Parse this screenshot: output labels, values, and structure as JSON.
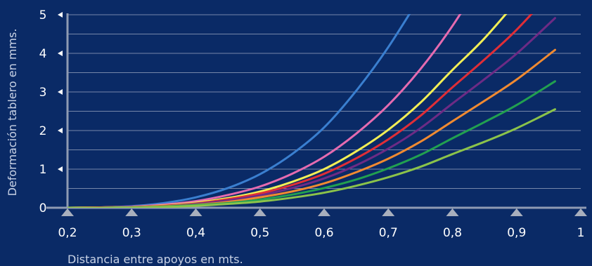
{
  "colors": {
    "background": "#0a2a66",
    "axis": "#8f9bb3",
    "grid": "#9aa6c0",
    "text": "#ffffff",
    "axis_title": "#c9d3e6"
  },
  "chart_data": {
    "type": "line",
    "title": "",
    "xlabel": "Distancia entre apoyos en mts.",
    "ylabel": "Deformación tablero en mms.",
    "xlim": [
      0.2,
      1.0
    ],
    "ylim": [
      0,
      5
    ],
    "x_ticks": [
      0.2,
      0.3,
      0.4,
      0.5,
      0.6,
      0.7,
      0.8,
      0.9,
      1.0
    ],
    "x_tick_labels": [
      "0,2",
      "0,3",
      "0,4",
      "0,5",
      "0,6",
      "0,7",
      "0,8",
      "0,9",
      "1"
    ],
    "y_ticks": [
      0,
      1,
      2,
      3,
      4,
      5
    ],
    "y_tick_labels": [
      "0",
      "1",
      "2",
      "3",
      "4",
      "5"
    ],
    "grid": true,
    "legend": "none",
    "x": [
      0.2,
      0.25,
      0.3,
      0.35,
      0.4,
      0.45,
      0.5,
      0.55,
      0.6,
      0.65,
      0.7,
      0.75,
      0.8,
      0.85,
      0.9,
      0.95,
      1.0
    ],
    "series": [
      {
        "color": "#3a7fd0",
        "values": [
          0.0,
          0.01,
          0.04,
          0.12,
          0.27,
          0.51,
          0.87,
          1.39,
          2.08,
          3.03,
          4.16,
          null,
          null,
          null,
          null,
          null,
          null
        ]
      },
      {
        "color": "#e56bb0",
        "values": [
          0.0,
          0.01,
          0.03,
          0.08,
          0.17,
          0.33,
          0.55,
          0.88,
          1.32,
          1.92,
          2.66,
          3.59,
          4.71,
          null,
          null,
          null,
          null
        ]
      },
      {
        "color": "#f2ee55",
        "values": [
          0.0,
          0.01,
          0.02,
          0.06,
          0.13,
          0.25,
          0.42,
          0.67,
          1.0,
          1.46,
          2.02,
          2.72,
          3.57,
          4.39,
          null,
          null,
          null
        ]
      },
      {
        "color": "#e02e37",
        "values": [
          0.0,
          0.01,
          0.02,
          0.05,
          0.11,
          0.22,
          0.37,
          0.59,
          0.88,
          1.28,
          1.77,
          2.38,
          3.12,
          3.84,
          4.61,
          null,
          null
        ]
      },
      {
        "color": "#6d2b85",
        "values": [
          0.0,
          0.0,
          0.02,
          0.04,
          0.1,
          0.19,
          0.32,
          0.51,
          0.76,
          1.1,
          1.53,
          2.06,
          2.7,
          3.33,
          3.99,
          null,
          null
        ]
      },
      {
        "color": "#f08a31",
        "values": [
          0.0,
          0.0,
          0.01,
          0.04,
          0.08,
          0.15,
          0.27,
          0.42,
          0.63,
          0.92,
          1.27,
          1.71,
          2.24,
          2.77,
          3.32,
          null,
          null
        ]
      },
      {
        "color": "#22a050",
        "values": [
          0.0,
          0.0,
          0.01,
          0.03,
          0.07,
          0.12,
          0.21,
          0.34,
          0.51,
          0.73,
          1.02,
          1.37,
          1.8,
          2.22,
          2.66,
          null,
          null
        ]
      },
      {
        "color": "#8bc34a",
        "values": [
          0.0,
          0.0,
          0.01,
          0.02,
          0.05,
          0.1,
          0.16,
          0.26,
          0.39,
          0.57,
          0.79,
          1.06,
          1.39,
          1.71,
          2.06,
          null,
          null
        ]
      }
    ]
  }
}
